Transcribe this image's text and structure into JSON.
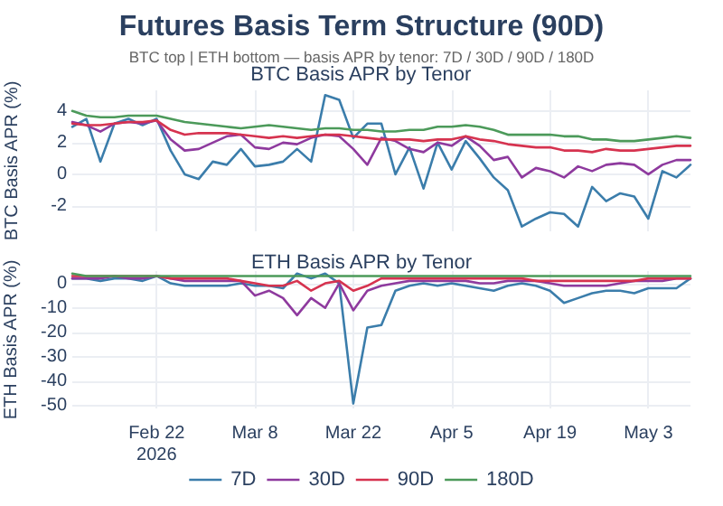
{
  "chart_data": [
    {
      "type": "line",
      "title": "Futures Basis Term Structure (90D)",
      "subtitle": "BTC top | ETH bottom — basis APR by tenor: 7D / 30D / 90D / 180D",
      "annotations": [
        "BTC Basis APR by Tenor"
      ],
      "ylabel": "BTC Basis APR (%)",
      "x": [
        "2026-02-10",
        "2026-02-12",
        "2026-02-14",
        "2026-02-16",
        "2026-02-18",
        "2026-02-20",
        "2026-02-22",
        "2026-02-24",
        "2026-02-26",
        "2026-02-28",
        "2026-03-02",
        "2026-03-04",
        "2026-03-06",
        "2026-03-08",
        "2026-03-10",
        "2026-03-12",
        "2026-03-14",
        "2026-03-16",
        "2026-03-18",
        "2026-03-20",
        "2026-03-22",
        "2026-03-24",
        "2026-03-26",
        "2026-03-28",
        "2026-03-30",
        "2026-04-01",
        "2026-04-03",
        "2026-04-05",
        "2026-04-07",
        "2026-04-09",
        "2026-04-11",
        "2026-04-13",
        "2026-04-15",
        "2026-04-17",
        "2026-04-19",
        "2026-04-21",
        "2026-04-23",
        "2026-04-25",
        "2026-04-27",
        "2026-04-29",
        "2026-05-01",
        "2026-05-03",
        "2026-05-05",
        "2026-05-07",
        "2026-05-09"
      ],
      "series": [
        {
          "color": "#3b7dab",
          "values": [
            3.0,
            3.5,
            0.8,
            3.2,
            3.5,
            3.1,
            3.5,
            1.5,
            0.0,
            -0.3,
            0.8,
            0.6,
            1.6,
            0.5,
            0.6,
            0.8,
            1.6,
            0.8,
            5.0,
            4.7,
            2.3,
            3.2,
            3.2,
            0.0,
            1.7,
            -0.9,
            2.0,
            0.3,
            2.1,
            1.0,
            -0.2,
            -1.0,
            -3.3,
            -2.8,
            -2.4,
            -2.5,
            -3.3,
            -0.8,
            -1.7,
            -1.2,
            -1.4,
            -2.8,
            0.2,
            -0.2,
            0.6
          ]
        },
        {
          "color": "#8e3a9e",
          "values": [
            3.3,
            3.1,
            2.7,
            3.2,
            3.3,
            3.2,
            3.4,
            2.2,
            1.5,
            1.6,
            2.0,
            2.4,
            2.5,
            1.7,
            1.6,
            2.0,
            1.9,
            2.3,
            2.5,
            2.4,
            1.6,
            0.6,
            2.3,
            2.1,
            1.6,
            1.4,
            2.0,
            1.8,
            2.4,
            1.8,
            0.9,
            1.1,
            -0.2,
            0.4,
            0.2,
            -0.2,
            0.5,
            0.2,
            0.6,
            0.7,
            0.6,
            0.0,
            0.6,
            0.9,
            0.9
          ]
        },
        {
          "color": "#d6334f",
          "values": [
            3.2,
            3.1,
            3.1,
            3.2,
            3.3,
            3.3,
            3.4,
            2.8,
            2.5,
            2.6,
            2.6,
            2.6,
            2.5,
            2.4,
            2.3,
            2.4,
            2.3,
            2.4,
            2.5,
            2.5,
            2.4,
            2.3,
            2.2,
            2.2,
            2.2,
            2.1,
            2.2,
            2.2,
            2.4,
            2.2,
            2.1,
            1.9,
            1.8,
            1.7,
            1.7,
            1.5,
            1.5,
            1.4,
            1.6,
            1.5,
            1.5,
            1.6,
            1.7,
            1.8,
            1.8
          ]
        },
        {
          "color": "#4c9a5a",
          "values": [
            4.0,
            3.7,
            3.6,
            3.6,
            3.7,
            3.7,
            3.7,
            3.5,
            3.3,
            3.2,
            3.1,
            3.0,
            2.9,
            3.0,
            3.1,
            3.0,
            2.9,
            2.8,
            2.9,
            2.9,
            2.8,
            2.8,
            2.7,
            2.7,
            2.8,
            2.8,
            3.0,
            3.0,
            3.1,
            3.0,
            2.8,
            2.5,
            2.5,
            2.5,
            2.5,
            2.4,
            2.4,
            2.2,
            2.2,
            2.1,
            2.1,
            2.2,
            2.3,
            2.4,
            2.3
          ]
        }
      ],
      "xlim": [
        "2026-02-10",
        "2026-05-09"
      ],
      "xticks": [
        {
          "value": "2026-02-22",
          "label": null
        },
        {
          "value": "2026-03-08",
          "label": null
        },
        {
          "value": "2026-03-22",
          "label": null
        },
        {
          "value": "2026-04-05",
          "label": null
        },
        {
          "value": "2026-04-19",
          "label": null
        },
        {
          "value": "2026-05-03",
          "label": null
        }
      ],
      "ylim": [
        -3.6,
        5.3
      ],
      "yticks": [
        -2,
        0,
        2,
        4
      ],
      "tick_labels": "y",
      "grid": true,
      "legend": false,
      "marker": "none",
      "line_style": "solid"
    },
    {
      "type": "line",
      "title": "ETH Basis APR by Tenor",
      "ylabel": "ETH Basis APR (%)",
      "x": [
        "2026-02-10",
        "2026-02-12",
        "2026-02-14",
        "2026-02-16",
        "2026-02-18",
        "2026-02-20",
        "2026-02-22",
        "2026-02-24",
        "2026-02-26",
        "2026-02-28",
        "2026-03-02",
        "2026-03-04",
        "2026-03-06",
        "2026-03-08",
        "2026-03-10",
        "2026-03-12",
        "2026-03-14",
        "2026-03-16",
        "2026-03-18",
        "2026-03-20",
        "2026-03-22",
        "2026-03-24",
        "2026-03-26",
        "2026-03-28",
        "2026-03-30",
        "2026-04-01",
        "2026-04-03",
        "2026-04-05",
        "2026-04-07",
        "2026-04-09",
        "2026-04-11",
        "2026-04-13",
        "2026-04-15",
        "2026-04-17",
        "2026-04-19",
        "2026-04-21",
        "2026-04-23",
        "2026-04-25",
        "2026-04-27",
        "2026-04-29",
        "2026-05-01",
        "2026-05-03",
        "2026-05-05",
        "2026-05-07",
        "2026-05-09"
      ],
      "series": [
        {
          "name": "7D",
          "color": "#3b7dab",
          "values": [
            2,
            2,
            1,
            2,
            2,
            1,
            3,
            0,
            -1,
            -1,
            -1,
            -1,
            0,
            -1,
            -1,
            -2,
            4,
            2,
            4,
            0,
            -49,
            -18,
            -17,
            -3,
            -1,
            0,
            -1,
            0,
            -1,
            -2,
            -3,
            -1,
            0,
            -1,
            -3,
            -8,
            -6,
            -4,
            -3,
            -3,
            -4,
            -2,
            -2,
            -2,
            2
          ]
        },
        {
          "name": "30D",
          "color": "#8e3a9e",
          "values": [
            2,
            2,
            2,
            3,
            2,
            2,
            3,
            2,
            1,
            1,
            1,
            1,
            1,
            -5,
            -3,
            -6,
            -13,
            -6,
            -10,
            0,
            -11,
            -3,
            -1,
            0,
            1,
            1,
            1,
            1,
            1,
            0,
            0,
            1,
            1,
            1,
            0,
            -1,
            -1,
            -1,
            -1,
            0,
            1,
            1,
            1,
            2,
            2
          ]
        },
        {
          "name": "90D",
          "color": "#d6334f",
          "values": [
            3,
            3,
            3,
            3,
            3,
            3,
            3,
            2,
            2,
            2,
            2,
            2,
            1,
            0,
            -1,
            -1,
            1,
            -3,
            0,
            1,
            -3,
            -1,
            2,
            2,
            2,
            2,
            2,
            2,
            2,
            2,
            2,
            2,
            2,
            1,
            1,
            1,
            1,
            1,
            1,
            1,
            1,
            2,
            2,
            2,
            2
          ]
        },
        {
          "name": "180D",
          "color": "#4c9a5a",
          "values": [
            4,
            3,
            3,
            3,
            3,
            3,
            3,
            3,
            3,
            3,
            3,
            3,
            3,
            3,
            3,
            3,
            3,
            3,
            3,
            3,
            3,
            3,
            3,
            3,
            3,
            3,
            3,
            3,
            3,
            3,
            3,
            3,
            3,
            3,
            3,
            3,
            3,
            3,
            3,
            3,
            3,
            3,
            3,
            3,
            3
          ]
        }
      ],
      "xlim": [
        "2026-02-10",
        "2026-05-09"
      ],
      "xticks": [
        {
          "value": "2026-02-22",
          "label": "Feb 22\n2026"
        },
        {
          "value": "2026-03-08",
          "label": "Mar 8"
        },
        {
          "value": "2026-03-22",
          "label": "Mar 22"
        },
        {
          "value": "2026-04-05",
          "label": "Apr 5"
        },
        {
          "value": "2026-04-19",
          "label": "Apr 19"
        },
        {
          "value": "2026-05-03",
          "label": "May 3"
        }
      ],
      "ylim": [
        -51,
        5
      ],
      "yticks": [
        -50,
        -40,
        -30,
        -20,
        -10,
        0
      ],
      "grid": true,
      "legend": "bottom",
      "marker": "none",
      "line_style": "solid"
    }
  ]
}
